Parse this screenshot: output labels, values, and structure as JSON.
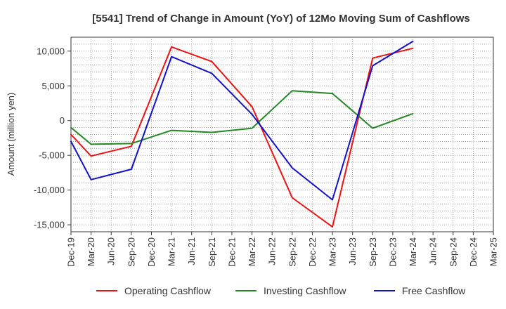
{
  "chart_data": {
    "type": "line",
    "title": "[5541]  Trend of Change in Amount (YoY) of 12Mo Moving Sum of Cashflows",
    "xlabel": "",
    "ylabel": "Amount (million yen)",
    "ylim": [
      -16000,
      12000
    ],
    "yticks": [
      10000,
      5000,
      0,
      -5000,
      -10000,
      -15000
    ],
    "ytick_labels": [
      "10,000",
      "5,000",
      "0",
      "-5,000",
      "-10,000",
      "-15,000"
    ],
    "categories": [
      "Dec-19",
      "Mar-20",
      "Jun-20",
      "Sep-20",
      "Dec-20",
      "Mar-21",
      "Jun-21",
      "Sep-21",
      "Dec-21",
      "Mar-22",
      "Jun-22",
      "Sep-22",
      "Dec-22",
      "Mar-23",
      "Jun-23",
      "Sep-23",
      "Dec-23",
      "Mar-24",
      "Jun-24",
      "Sep-24",
      "Dec-24",
      "Mar-25"
    ],
    "grid": true,
    "legend_position": "bottom",
    "series": [
      {
        "name": "Operating Cashflow",
        "color": "#ee1111",
        "values": [
          -2000,
          -5100,
          null,
          -3700,
          null,
          10600,
          null,
          8500,
          null,
          2000,
          null,
          -11100,
          null,
          -15300,
          null,
          9000,
          null,
          10400,
          null,
          null,
          null,
          null
        ]
      },
      {
        "name": "Investing Cashflow",
        "color": "#228822",
        "values": [
          -1000,
          -3400,
          null,
          -3300,
          null,
          -1400,
          null,
          -1700,
          null,
          -1100,
          null,
          4300,
          null,
          3900,
          null,
          -1100,
          null,
          1000,
          null,
          null,
          null,
          null
        ]
      },
      {
        "name": "Free Cashflow",
        "color": "#1111cc",
        "values": [
          -3000,
          -8500,
          null,
          -7000,
          null,
          9200,
          null,
          6800,
          null,
          900,
          null,
          -6800,
          null,
          -11400,
          null,
          7900,
          null,
          11400,
          null,
          null,
          null,
          null
        ]
      }
    ]
  }
}
